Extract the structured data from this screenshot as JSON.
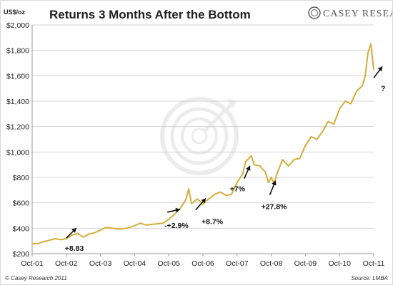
{
  "brand": {
    "name": "CASEY RESEARCH"
  },
  "copyright": "© Casey Research 2011",
  "source": "Source: LMBA",
  "chart_data": {
    "type": "line",
    "title": "Returns 3 Months After the Bottom",
    "unit_label": "US$/oz",
    "xlabel": "",
    "ylabel": "",
    "ylim": [
      200,
      2000
    ],
    "y_ticks": [
      "$200",
      "$400",
      "$600",
      "$800",
      "$1,000",
      "$1,200",
      "$1,400",
      "$1,600",
      "$1,800",
      "$2,000"
    ],
    "y_tick_values": [
      200,
      400,
      600,
      800,
      1000,
      1200,
      1400,
      1600,
      1800,
      2000
    ],
    "x_ticks": [
      "Oct-01",
      "Oct-02",
      "Oct-03",
      "Oct-04",
      "Oct-05",
      "Oct-06",
      "Oct-07",
      "Oct-08",
      "Oct-09",
      "Oct-10",
      "Oct-11"
    ],
    "grid": true,
    "legend": "none",
    "series_color": "#d4ad3a",
    "series": [
      {
        "x": [
          "2001-10",
          "2001-12",
          "2002-02",
          "2002-04",
          "2002-06",
          "2002-08",
          "2002-10",
          "2002-12",
          "2003-02",
          "2003-04",
          "2003-06",
          "2003-08",
          "2003-10",
          "2003-12",
          "2004-02",
          "2004-04",
          "2004-06",
          "2004-08",
          "2004-10",
          "2004-12",
          "2005-02",
          "2005-04",
          "2005-06",
          "2005-08",
          "2005-10",
          "2005-12",
          "2006-02",
          "2006-04",
          "2006-05",
          "2006-06",
          "2006-08",
          "2006-10",
          "2006-12",
          "2007-02",
          "2007-04",
          "2007-06",
          "2007-08",
          "2007-10",
          "2007-12",
          "2008-01",
          "2008-03",
          "2008-04",
          "2008-06",
          "2008-08",
          "2008-09",
          "2008-10",
          "2008-11",
          "2008-12",
          "2009-02",
          "2009-04",
          "2009-06",
          "2009-08",
          "2009-10",
          "2009-12",
          "2010-02",
          "2010-04",
          "2010-06",
          "2010-08",
          "2010-10",
          "2010-12",
          "2011-02",
          "2011-04",
          "2011-06",
          "2011-07",
          "2011-08",
          "2011-09",
          "2011-10"
        ],
        "values": [
          280,
          278,
          295,
          305,
          318,
          310,
          318,
          345,
          360,
          330,
          355,
          365,
          385,
          405,
          400,
          395,
          395,
          405,
          420,
          440,
          425,
          430,
          435,
          440,
          470,
          510,
          555,
          625,
          710,
          595,
          630,
          590,
          630,
          665,
          685,
          660,
          665,
          760,
          830,
          925,
          970,
          900,
          890,
          840,
          760,
          800,
          750,
          830,
          940,
          890,
          940,
          950,
          1050,
          1120,
          1100,
          1160,
          1240,
          1220,
          1340,
          1400,
          1380,
          1480,
          1520,
          1600,
          1780,
          1850,
          1650
        ]
      }
    ],
    "annotations": [
      {
        "text": "+8.83",
        "x": "2002-12",
        "y": 345
      },
      {
        "text": "-+2.9%",
        "x": "2006-04",
        "y": 560
      },
      {
        "text": "+8.7%",
        "x": "2006-10",
        "y": 590
      },
      {
        "text": "+7%",
        "x": "2008-01",
        "y": 925
      },
      {
        "text": "+27.8%",
        "x": "2008-12",
        "y": 830
      },
      {
        "text": "?",
        "x": "2011-10",
        "y": 1650
      }
    ]
  }
}
